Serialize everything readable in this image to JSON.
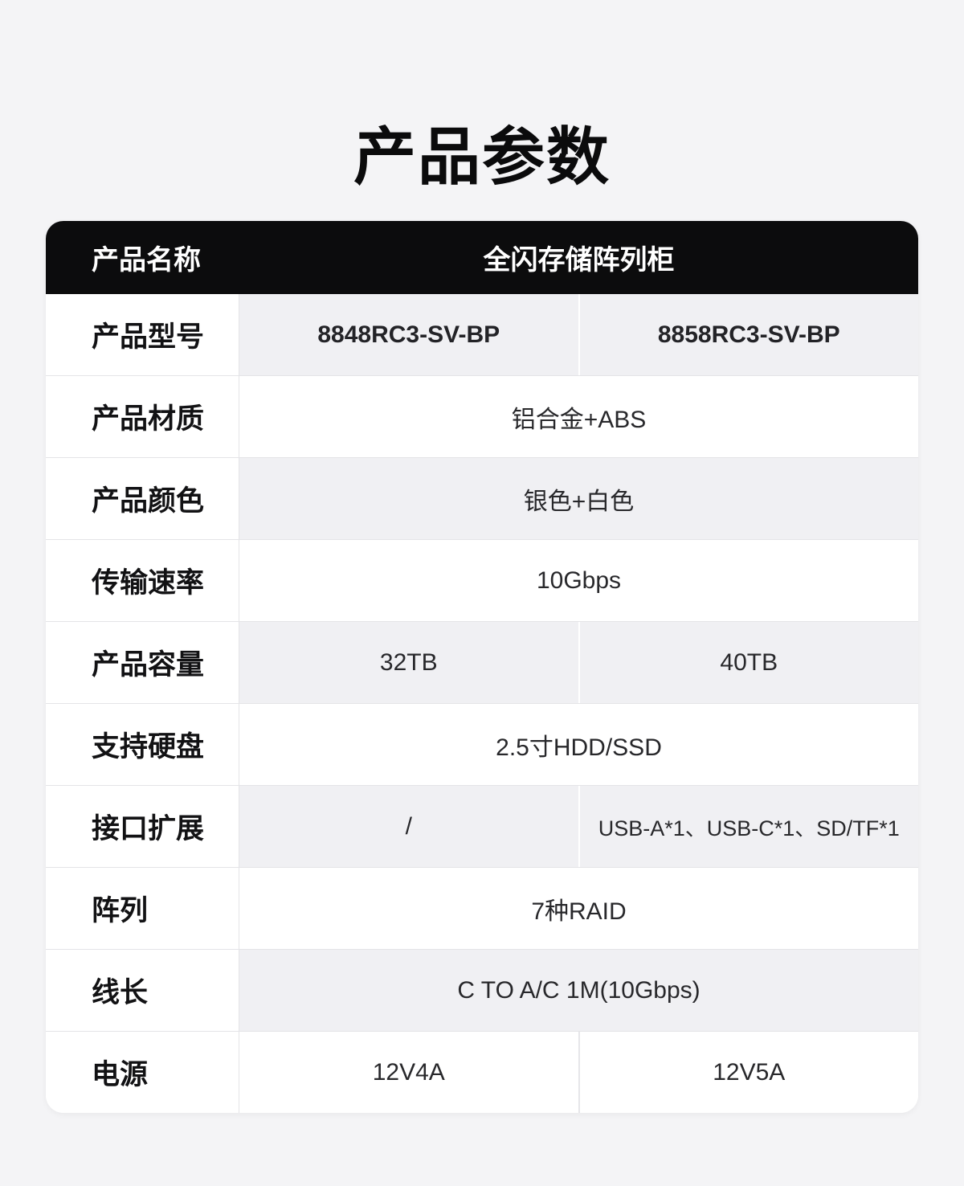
{
  "page": {
    "title": "产品参数"
  },
  "table": {
    "header": {
      "label": "产品名称",
      "value": "全闪存储阵列柜"
    },
    "rows": [
      {
        "label": "产品型号",
        "values": [
          "8848RC3-SV-BP",
          "8858RC3-SV-BP"
        ]
      },
      {
        "label": "产品材质",
        "value": "铝合金+ABS"
      },
      {
        "label": "产品颜色",
        "value": "银色+白色"
      },
      {
        "label": "传输速率",
        "value": "10Gbps"
      },
      {
        "label": "产品容量",
        "values": [
          "32TB",
          "40TB"
        ]
      },
      {
        "label": "支持硬盘",
        "value": "2.5寸HDD/SSD"
      },
      {
        "label": "接口扩展",
        "values": [
          "/",
          "USB-A*1、USB-C*1、SD/TF*1"
        ]
      },
      {
        "label": "阵列",
        "value": "7种RAID"
      },
      {
        "label": "线长",
        "value": "C TO A/C 1M(10Gbps)"
      },
      {
        "label": "电源",
        "values": [
          "12V4A",
          "12V5A"
        ]
      }
    ]
  },
  "colors": {
    "page_bg": "#f4f4f6",
    "card_bg": "#ffffff",
    "header_bg": "#0c0c0d",
    "header_text": "#ffffff",
    "row_shade": "#f0f0f3",
    "border": "#e4e4e7",
    "title_text": "#0b0b0c",
    "label_text": "#121214",
    "value_text": "#28282b"
  }
}
